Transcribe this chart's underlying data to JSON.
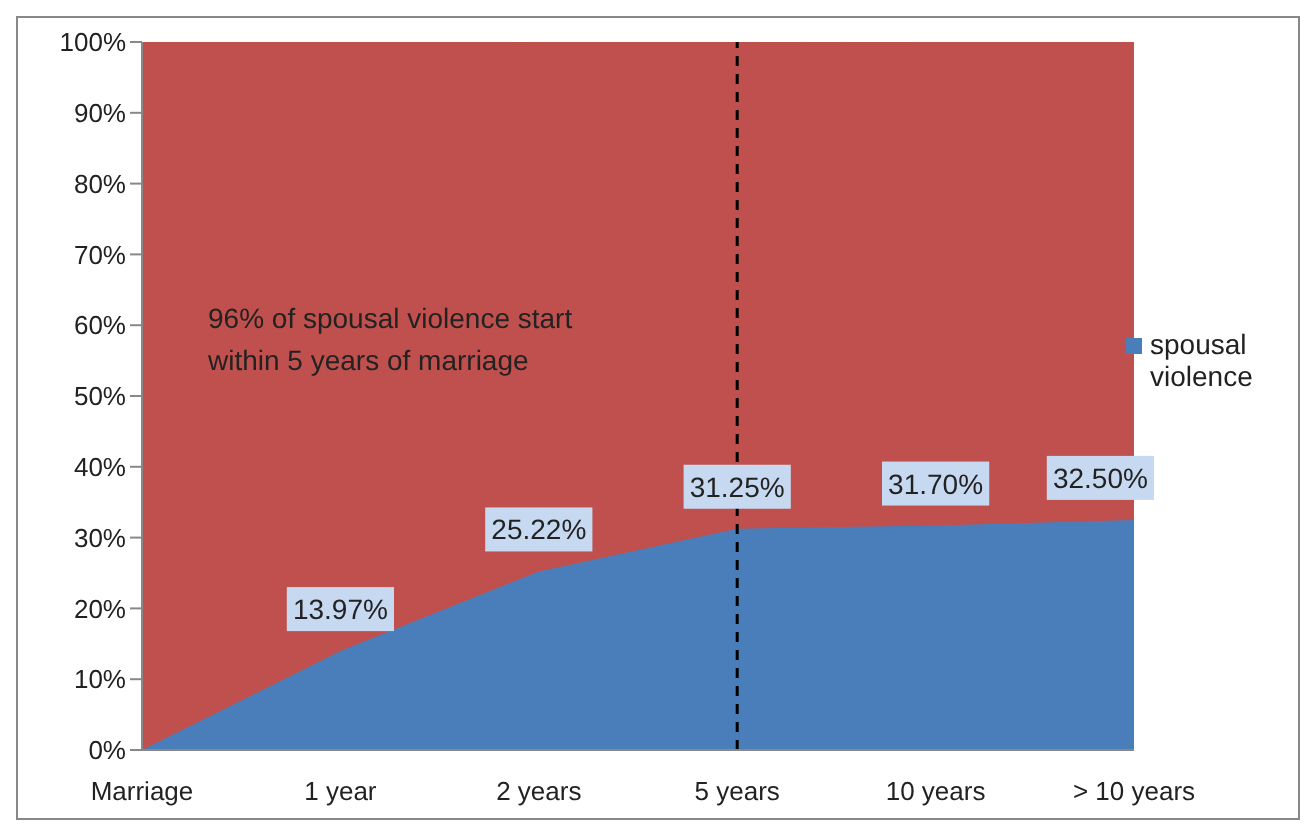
{
  "chart_data": {
    "type": "area",
    "stacked": true,
    "categories": [
      "Marriage",
      "1 year",
      "2 years",
      "5 years",
      "10 years",
      "> 10 years"
    ],
    "series": [
      {
        "name": "spousal violence",
        "color": "#4a7ebb",
        "values": [
          0,
          13.97,
          25.22,
          31.25,
          31.7,
          32.5
        ],
        "value_labels": [
          null,
          "13.97%",
          "25.22%",
          "31.25%",
          "31.70%",
          "32.50%"
        ]
      },
      {
        "color": "#c0504d",
        "values": [
          100,
          86.0,
          74.8,
          68.8,
          68.3,
          67.5
        ]
      }
    ],
    "ylim": [
      0,
      100
    ],
    "yticks": [
      {
        "value": 0,
        "label": "0%"
      },
      {
        "value": 10,
        "label": "10%"
      },
      {
        "value": 20,
        "label": "20%"
      },
      {
        "value": 30,
        "label": "30%"
      },
      {
        "value": 40,
        "label": "40%"
      },
      {
        "value": 50,
        "label": "50%"
      },
      {
        "value": 60,
        "label": "60%"
      },
      {
        "value": 70,
        "label": "70%"
      },
      {
        "value": 80,
        "label": "80%"
      },
      {
        "value": 90,
        "label": "90%"
      },
      {
        "value": 100,
        "label": "100%"
      }
    ],
    "ref_lines": [
      {
        "axis": "x",
        "value": "5 years",
        "line_style": "dashed",
        "color": "#000000"
      }
    ],
    "annotations": [
      "96% of spousal violence start within 5 years of marriage"
    ],
    "legend": "right",
    "grid": false
  }
}
